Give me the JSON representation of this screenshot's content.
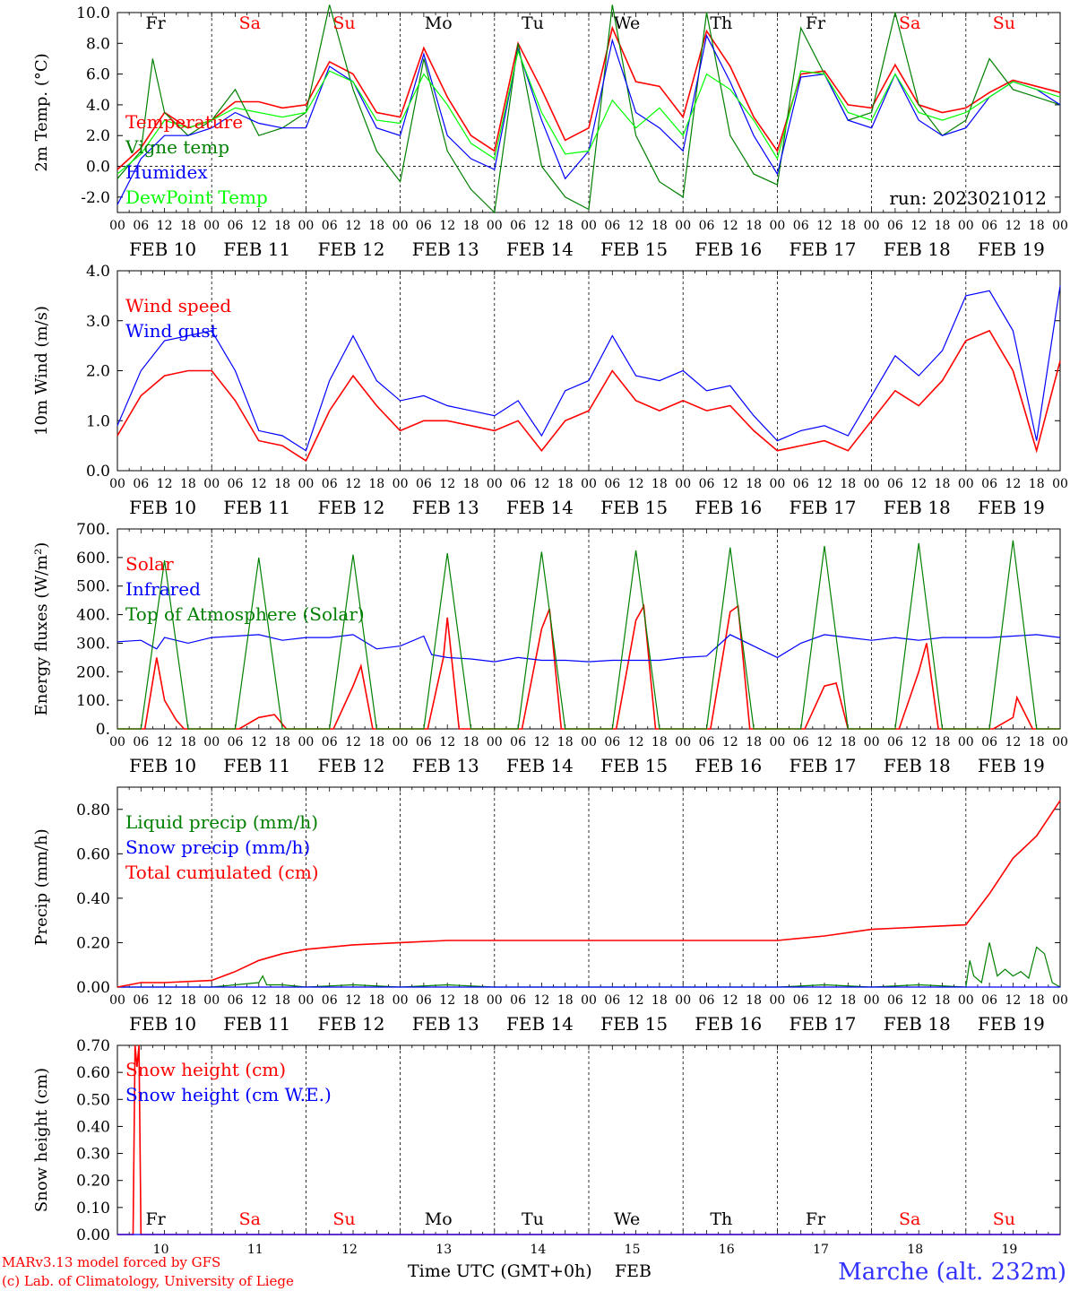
{
  "colors": {
    "red": "#ff0000",
    "green": "#008000",
    "blue": "#0000ff",
    "lime": "#00ff00",
    "black": "#000000",
    "footer_blue": "#3333ff"
  },
  "run_label": "run: 2023021012",
  "hour_ticks": [
    "00",
    "06",
    "12",
    "18"
  ],
  "dates": [
    "FEB 10",
    "FEB 11",
    "FEB 12",
    "FEB 13",
    "FEB 14",
    "FEB 15",
    "FEB 16",
    "FEB 17",
    "FEB 18",
    "FEB 19"
  ],
  "weekdays": [
    {
      "label": "Fr",
      "weekend": false
    },
    {
      "label": "Sa",
      "weekend": true
    },
    {
      "label": "Su",
      "weekend": true
    },
    {
      "label": "Mo",
      "weekend": false
    },
    {
      "label": "Tu",
      "weekend": false
    },
    {
      "label": "We",
      "weekend": false
    },
    {
      "label": "Th",
      "weekend": false
    },
    {
      "label": "Fr",
      "weekend": false
    },
    {
      "label": "Sa",
      "weekend": true
    },
    {
      "label": "Su",
      "weekend": true
    }
  ],
  "day_numbers": [
    "10",
    "11",
    "12",
    "13",
    "14",
    "15",
    "16",
    "17",
    "18",
    "19"
  ],
  "footer": {
    "model": "MARv3.13 model forced by GFS",
    "copyright": "(c) Lab. of Climatology, University of Liege",
    "axis_title": "Time UTC (GMT+0h)",
    "month": "FEB",
    "location": "Marche (alt. 232m)"
  },
  "chart_data": [
    {
      "type": "line",
      "ylabel": "2m Temp. (°C)",
      "ylim": [
        -3,
        10
      ],
      "yticks": [
        "-2.0",
        "0.0",
        "2.0",
        "4.0",
        "6.0",
        "8.0",
        "10.0"
      ],
      "zero_line": true,
      "x_unit": "hours since FEB 10 00 UTC",
      "series": [
        {
          "name": "Temperature",
          "color": "red",
          "x": [
            0,
            6,
            12,
            18,
            24,
            30,
            36,
            42,
            48,
            54,
            60,
            66,
            72,
            78,
            84,
            90,
            96,
            102,
            108,
            114,
            120,
            126,
            132,
            138,
            144,
            150,
            156,
            162,
            168,
            174,
            180,
            186,
            192,
            198,
            204,
            210,
            216,
            222,
            228,
            234,
            240
          ],
          "values": [
            -0.2,
            1.2,
            3.5,
            2.5,
            3.0,
            4.2,
            4.2,
            3.8,
            4.0,
            6.8,
            6.0,
            3.5,
            3.2,
            7.7,
            4.5,
            2.0,
            1.0,
            8.0,
            5.0,
            1.7,
            2.5,
            9.0,
            5.5,
            5.2,
            3.2,
            8.8,
            6.5,
            3.2,
            1.0,
            6.0,
            6.2,
            4.0,
            3.8,
            6.6,
            4.0,
            3.5,
            3.8,
            4.8,
            5.6,
            5.2,
            4.8
          ]
        },
        {
          "name": "Vigne temp",
          "color": "green",
          "x": [
            0,
            6,
            9,
            12,
            18,
            24,
            30,
            36,
            42,
            48,
            54,
            60,
            66,
            72,
            78,
            84,
            90,
            96,
            102,
            108,
            114,
            120,
            126,
            132,
            138,
            144,
            150,
            156,
            162,
            168,
            174,
            180,
            186,
            192,
            198,
            204,
            210,
            216,
            222,
            228,
            234,
            240
          ],
          "values": [
            -0.8,
            1.0,
            7.0,
            3.5,
            2.0,
            3.0,
            5.0,
            2.0,
            2.5,
            3.5,
            10.5,
            5.0,
            1.0,
            -1.0,
            7.0,
            1.0,
            -1.5,
            -3.0,
            8.0,
            0.0,
            -2.0,
            -2.8,
            10.5,
            2.0,
            -1.0,
            -2.0,
            10.0,
            2.0,
            -0.5,
            -1.2,
            9.0,
            6.0,
            3.0,
            3.5,
            10.0,
            4.0,
            2.0,
            3.0,
            7.0,
            5.0,
            4.5,
            4.0
          ]
        },
        {
          "name": "Humidex",
          "color": "blue",
          "x": [
            0,
            6,
            12,
            18,
            24,
            30,
            36,
            42,
            48,
            54,
            60,
            66,
            72,
            78,
            84,
            90,
            96,
            102,
            108,
            114,
            120,
            126,
            132,
            138,
            144,
            150,
            156,
            162,
            168,
            174,
            180,
            186,
            192,
            198,
            204,
            210,
            216,
            222,
            228,
            234,
            240
          ],
          "values": [
            -2.5,
            0.5,
            2.0,
            2.0,
            2.5,
            3.5,
            2.8,
            2.5,
            2.5,
            6.5,
            5.5,
            2.5,
            2.0,
            7.3,
            2.0,
            0.5,
            -0.2,
            7.6,
            3.0,
            -0.8,
            1.0,
            8.2,
            3.5,
            2.5,
            1.0,
            8.5,
            5.5,
            2.0,
            -0.5,
            5.8,
            6.0,
            3.0,
            2.5,
            6.0,
            3.0,
            2.0,
            2.5,
            4.5,
            5.5,
            5.0,
            4.0
          ]
        },
        {
          "name": "DewPoint Temp",
          "color": "lime",
          "x": [
            0,
            6,
            12,
            18,
            24,
            30,
            36,
            42,
            48,
            54,
            60,
            66,
            72,
            78,
            84,
            90,
            96,
            102,
            108,
            114,
            120,
            126,
            132,
            138,
            144,
            150,
            156,
            162,
            168,
            174,
            180,
            186,
            192,
            198,
            204,
            210,
            216,
            222,
            228,
            234,
            240
          ],
          "values": [
            -0.5,
            0.8,
            3.0,
            2.5,
            3.0,
            3.8,
            3.5,
            3.2,
            3.5,
            6.2,
            5.5,
            3.0,
            2.8,
            6.0,
            4.0,
            1.5,
            0.5,
            7.5,
            3.5,
            0.8,
            1.0,
            4.3,
            2.5,
            3.8,
            2.0,
            6.0,
            5.0,
            3.0,
            0.5,
            6.2,
            6.0,
            3.5,
            3.0,
            6.0,
            3.5,
            3.0,
            3.5,
            4.5,
            5.5,
            5.0,
            4.5
          ]
        }
      ]
    },
    {
      "type": "line",
      "ylabel": "10m Wind (m/s)",
      "ylim": [
        0,
        4
      ],
      "yticks": [
        "0.0",
        "1.0",
        "2.0",
        "3.0",
        "4.0"
      ],
      "series": [
        {
          "name": "Wind speed",
          "color": "red",
          "x": [
            0,
            6,
            12,
            18,
            24,
            30,
            36,
            42,
            48,
            54,
            60,
            66,
            72,
            78,
            84,
            90,
            96,
            102,
            108,
            114,
            120,
            126,
            132,
            138,
            144,
            150,
            156,
            162,
            168,
            174,
            180,
            186,
            192,
            198,
            204,
            210,
            216,
            222,
            228,
            234,
            240
          ],
          "values": [
            0.7,
            1.5,
            1.9,
            2.0,
            2.0,
            1.4,
            0.6,
            0.5,
            0.2,
            1.2,
            1.9,
            1.3,
            0.8,
            1.0,
            1.0,
            0.9,
            0.8,
            1.0,
            0.4,
            1.0,
            1.2,
            2.0,
            1.4,
            1.2,
            1.4,
            1.2,
            1.3,
            0.8,
            0.4,
            0.5,
            0.6,
            0.4,
            1.0,
            1.6,
            1.3,
            1.8,
            2.6,
            2.8,
            2.0,
            0.4,
            2.2
          ]
        },
        {
          "name": "Wind gust",
          "color": "blue",
          "x": [
            0,
            6,
            12,
            18,
            24,
            30,
            36,
            42,
            48,
            54,
            60,
            66,
            72,
            78,
            84,
            90,
            96,
            102,
            108,
            114,
            120,
            126,
            132,
            138,
            144,
            150,
            156,
            162,
            168,
            174,
            180,
            186,
            192,
            198,
            204,
            210,
            216,
            222,
            228,
            234,
            240
          ],
          "values": [
            0.9,
            2.0,
            2.6,
            2.7,
            2.8,
            2.0,
            0.8,
            0.7,
            0.4,
            1.8,
            2.7,
            1.8,
            1.4,
            1.5,
            1.3,
            1.2,
            1.1,
            1.4,
            0.7,
            1.6,
            1.8,
            2.7,
            1.9,
            1.8,
            2.0,
            1.6,
            1.7,
            1.1,
            0.6,
            0.8,
            0.9,
            0.7,
            1.5,
            2.3,
            1.9,
            2.4,
            3.5,
            3.6,
            2.8,
            0.6,
            3.7
          ]
        }
      ]
    },
    {
      "type": "line",
      "ylabel": "Energy fluxes (W/m²)",
      "ylim": [
        0,
        700
      ],
      "yticks": [
        "0.",
        "100.",
        "200.",
        "300.",
        "400.",
        "500.",
        "600.",
        "700."
      ],
      "series": [
        {
          "name": "Solar",
          "color": "red",
          "x": [
            0,
            7,
            10,
            12,
            15,
            17,
            24,
            31,
            36,
            40,
            43,
            48,
            55,
            60,
            62,
            65,
            72,
            79,
            83,
            84,
            87,
            96,
            103,
            108,
            110,
            113,
            120,
            127,
            132,
            134,
            137,
            144,
            151,
            156,
            158,
            161,
            168,
            175,
            180,
            183,
            186,
            192,
            199,
            204,
            206,
            209,
            216,
            223,
            228,
            229,
            233,
            240
          ],
          "values": [
            0,
            0,
            250,
            100,
            30,
            0,
            0,
            0,
            40,
            50,
            0,
            0,
            0,
            150,
            220,
            0,
            0,
            0,
            250,
            390,
            0,
            0,
            0,
            350,
            420,
            0,
            0,
            0,
            380,
            430,
            0,
            0,
            0,
            410,
            430,
            0,
            0,
            0,
            150,
            160,
            0,
            0,
            0,
            200,
            300,
            0,
            0,
            0,
            40,
            110,
            0,
            0
          ]
        },
        {
          "name": "Infrared",
          "color": "blue",
          "x": [
            0,
            6,
            10,
            12,
            18,
            24,
            30,
            36,
            42,
            48,
            54,
            60,
            66,
            72,
            78,
            80,
            84,
            90,
            96,
            102,
            108,
            114,
            120,
            126,
            132,
            138,
            144,
            150,
            156,
            168,
            174,
            180,
            186,
            192,
            198,
            204,
            210,
            216,
            222,
            228,
            234,
            240
          ],
          "values": [
            305,
            310,
            280,
            320,
            300,
            320,
            325,
            330,
            310,
            320,
            320,
            330,
            280,
            290,
            325,
            260,
            250,
            245,
            235,
            250,
            240,
            240,
            235,
            240,
            240,
            240,
            250,
            255,
            330,
            250,
            300,
            330,
            320,
            310,
            320,
            310,
            320,
            320,
            320,
            325,
            330,
            320
          ]
        },
        {
          "name": "Top of Atmosphere (Solar)",
          "color": "green",
          "x": [
            0,
            6,
            12,
            18,
            24,
            30,
            36,
            42,
            48,
            54,
            60,
            66,
            72,
            78,
            84,
            90,
            96,
            102,
            108,
            114,
            120,
            126,
            132,
            138,
            144,
            150,
            156,
            162,
            168,
            174,
            180,
            186,
            192,
            198,
            204,
            210,
            216,
            222,
            228,
            234,
            240
          ],
          "values": [
            0,
            0,
            590,
            0,
            0,
            0,
            600,
            0,
            0,
            0,
            610,
            0,
            0,
            0,
            615,
            0,
            0,
            0,
            620,
            0,
            0,
            0,
            625,
            0,
            0,
            0,
            635,
            0,
            0,
            0,
            640,
            0,
            0,
            0,
            650,
            0,
            0,
            0,
            660,
            0,
            0
          ]
        }
      ]
    },
    {
      "type": "line",
      "ylabel": "Precip (mm/h)",
      "ylim": [
        0,
        0.9
      ],
      "yticks": [
        "0.00",
        "0.20",
        "0.40",
        "0.60",
        "0.80"
      ],
      "series": [
        {
          "name": "Liquid precip (mm/h)",
          "color": "green",
          "x": [
            0,
            24,
            30,
            36,
            37,
            38,
            42,
            48,
            60,
            72,
            84,
            96,
            168,
            180,
            192,
            204,
            216,
            217,
            218,
            220,
            222,
            224,
            226,
            228,
            230,
            232,
            234,
            236,
            238,
            240
          ],
          "values": [
            0,
            0,
            0.01,
            0.02,
            0.05,
            0.01,
            0.01,
            0,
            0.01,
            0,
            0.01,
            0,
            0,
            0.01,
            0,
            0.01,
            0,
            0.12,
            0.05,
            0.02,
            0.2,
            0.05,
            0.08,
            0.05,
            0.07,
            0.04,
            0.18,
            0.15,
            0.02,
            0
          ]
        },
        {
          "name": "Snow precip (mm/h)",
          "color": "blue",
          "x": [
            0,
            240
          ],
          "values": [
            0,
            0
          ]
        },
        {
          "name": "Total cumulated (cm)",
          "color": "red",
          "x": [
            0,
            6,
            12,
            24,
            30,
            36,
            42,
            48,
            54,
            60,
            72,
            84,
            96,
            120,
            144,
            168,
            180,
            192,
            204,
            216,
            222,
            228,
            234,
            240
          ],
          "values": [
            0,
            0.02,
            0.02,
            0.03,
            0.07,
            0.12,
            0.15,
            0.17,
            0.18,
            0.19,
            0.2,
            0.21,
            0.21,
            0.21,
            0.21,
            0.21,
            0.23,
            0.26,
            0.27,
            0.28,
            0.42,
            0.58,
            0.68,
            0.84
          ]
        }
      ]
    },
    {
      "type": "line",
      "ylabel": "Snow height (cm)",
      "ylim": [
        0,
        0.7
      ],
      "yticks": [
        "0.00",
        "0.10",
        "0.20",
        "0.30",
        "0.40",
        "0.50",
        "0.60",
        "0.70"
      ],
      "series": [
        {
          "name": "Snow height (cm)",
          "color": "red",
          "x": [
            0,
            4,
            4.5,
            5,
            5.5,
            6,
            240
          ],
          "values": [
            0,
            0,
            0.7,
            0.62,
            0.7,
            0,
            0
          ]
        },
        {
          "name": "Snow height (cm W.E.)",
          "color": "blue",
          "x": [
            0,
            240
          ],
          "values": [
            0,
            0
          ]
        }
      ]
    }
  ]
}
